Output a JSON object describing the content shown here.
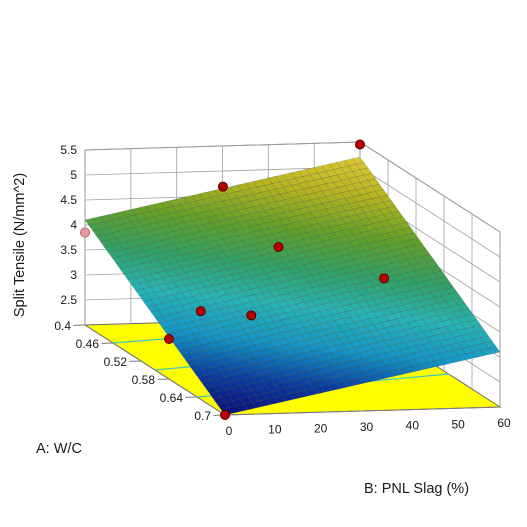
{
  "chart_data": {
    "type": "surface3d",
    "zlabel": "Split Tensile (N/mm^2)",
    "xlabel": "A: W/C",
    "ylabel": "B: PNL Slag (%)",
    "x_ticks": [
      "0.4",
      "0.46",
      "0.52",
      "0.58",
      "0.64",
      "0.7"
    ],
    "y_ticks": [
      "0",
      "10",
      "20",
      "30",
      "40",
      "50",
      "60"
    ],
    "z_ticks": [
      "2.5",
      "3",
      "3.5",
      "4",
      "4.5",
      "5",
      "5.5"
    ],
    "xlim": [
      0.4,
      0.7
    ],
    "ylim": [
      0,
      60
    ],
    "zlim": [
      2.0,
      5.5
    ],
    "surface_corners": [
      {
        "wc": 0.4,
        "slag": 0,
        "split_tensile": 4.1
      },
      {
        "wc": 0.4,
        "slag": 60,
        "split_tensile": 5.2
      },
      {
        "wc": 0.7,
        "slag": 0,
        "split_tensile": 2.0
      },
      {
        "wc": 0.7,
        "slag": 60,
        "split_tensile": 3.1
      }
    ],
    "points": [
      {
        "wc": 0.4,
        "slag": 60,
        "split_tensile": 5.45,
        "above": true
      },
      {
        "wc": 0.4,
        "slag": 0,
        "split_tensile": 3.85,
        "above": false
      },
      {
        "wc": 0.45,
        "slag": 25,
        "split_tensile": 5.0,
        "above": true
      },
      {
        "wc": 0.46,
        "slag": 45,
        "split_tensile": 4.7,
        "above": false
      },
      {
        "wc": 0.52,
        "slag": 30,
        "split_tensile": 4.2,
        "above": true
      },
      {
        "wc": 0.55,
        "slag": 50,
        "split_tensile": 3.7,
        "above": true
      },
      {
        "wc": 0.55,
        "slag": 10,
        "split_tensile": 3.15,
        "above": true
      },
      {
        "wc": 0.56,
        "slag": 20,
        "split_tensile": 3.1,
        "above": true
      },
      {
        "wc": 0.58,
        "slag": 0,
        "split_tensile": 2.8,
        "above": true
      },
      {
        "wc": 0.62,
        "slag": 60,
        "split_tensile": 2.95,
        "above": false
      },
      {
        "wc": 0.62,
        "slag": 60,
        "split_tensile": 2.65,
        "above": false
      },
      {
        "wc": 0.65,
        "slag": 40,
        "split_tensile": 2.5,
        "above": false
      },
      {
        "wc": 0.7,
        "slag": 0,
        "split_tensile": 2.0,
        "above": true
      }
    ],
    "contours": [
      {
        "wc": [
          0.46,
          0.42
        ],
        "slag": [
          0,
          60
        ]
      },
      {
        "wc": [
          0.55,
          0.5
        ],
        "slag": [
          0,
          60
        ]
      },
      {
        "wc": [
          0.64,
          0.59
        ],
        "slag": [
          0,
          60
        ]
      }
    ],
    "colors": {
      "floor": "#ffff00",
      "contour": "#40c8b8",
      "point": "#b40000",
      "point_below": "#e89898",
      "grid": "#a0a0a0",
      "mesh": "#3a3a3a"
    },
    "colormap": [
      "#0a0a78",
      "#0a3ca0",
      "#1496c8",
      "#28b4b4",
      "#32a064",
      "#64a028",
      "#b4b420",
      "#dcc834"
    ],
    "grid": true
  }
}
